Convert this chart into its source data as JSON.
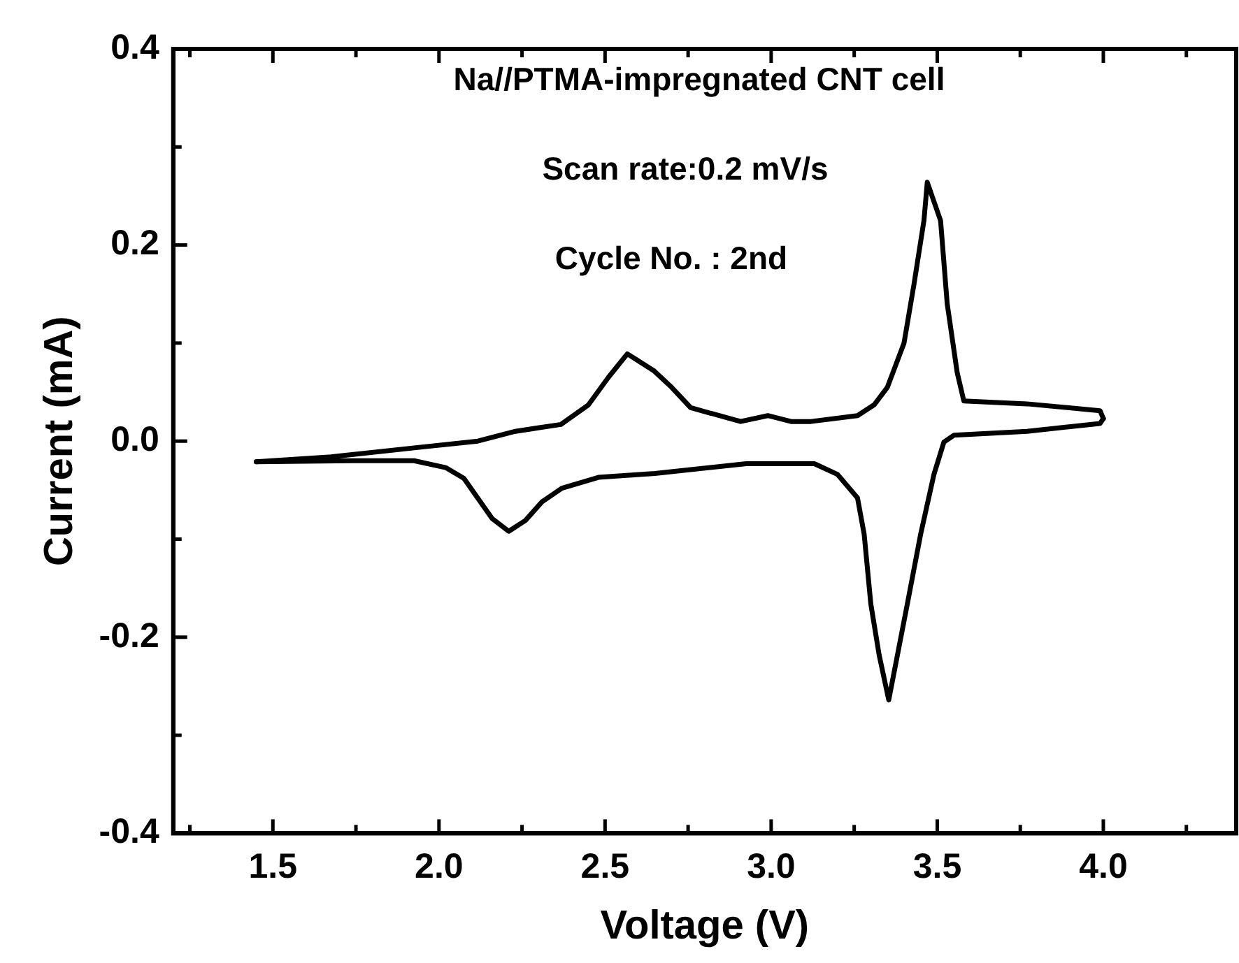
{
  "chart_data": {
    "type": "line",
    "xlabel": "Voltage (V)",
    "ylabel": "Current (mA)",
    "annotations": [
      "Na//PTMA-impregnated CNT cell",
      "Scan rate:0.2 mV/s",
      "Cycle No. : 2nd"
    ],
    "xlim": [
      1.2,
      4.4
    ],
    "ylim": [
      -0.4,
      0.4
    ],
    "xticks": [
      {
        "value": 1.25,
        "label": null
      },
      1.5,
      {
        "value": 1.75,
        "label": null
      },
      {
        "value": 2,
        "label": "2.0"
      },
      {
        "value": 2.25,
        "label": null
      },
      2.5,
      {
        "value": 2.75,
        "label": null
      },
      {
        "value": 3,
        "label": "3.0"
      },
      {
        "value": 3.25,
        "label": null
      },
      3.5,
      {
        "value": 3.75,
        "label": null
      },
      {
        "value": 4,
        "label": "4.0"
      },
      {
        "value": 4.25,
        "label": null
      }
    ],
    "yticks": [
      -0.4,
      {
        "value": -0.3,
        "label": null
      },
      -0.2,
      {
        "value": -0.1,
        "label": null
      },
      {
        "value": 0,
        "label": "0.0"
      },
      {
        "value": 0.1,
        "label": null
      },
      0.2,
      {
        "value": 0.3,
        "label": null
      },
      0.4
    ],
    "marker": "none",
    "line_style": "solid",
    "series": [
      {
        "color": "#000000",
        "x": [
          1.45,
          1.675,
          1.95,
          2.117,
          2.23,
          2.367,
          2.45,
          2.51,
          2.567,
          2.646,
          2.7,
          2.758,
          2.908,
          2.99,
          3.06,
          3.12,
          3.26,
          3.31,
          3.35,
          3.4,
          3.43,
          3.46,
          3.47,
          3.51,
          3.53,
          3.56,
          3.58,
          3.77,
          3.99,
          4.0
        ],
        "values": [
          -0.021,
          -0.016,
          -0.006,
          0.0,
          0.01,
          0.017,
          0.037,
          0.065,
          0.089,
          0.072,
          0.055,
          0.034,
          0.02,
          0.026,
          0.02,
          0.02,
          0.026,
          0.037,
          0.055,
          0.1,
          0.16,
          0.225,
          0.264,
          0.225,
          0.14,
          0.07,
          0.041,
          0.038,
          0.031,
          0.023
        ]
      },
      {
        "color": "#000000",
        "x": [
          1.45,
          1.74,
          1.925,
          2.02,
          2.075,
          2.16,
          2.21,
          2.26,
          2.31,
          2.37,
          2.48,
          2.65,
          2.925,
          3.06,
          3.13,
          3.2,
          3.26,
          3.28,
          3.3,
          3.325,
          3.354,
          3.41,
          3.45,
          3.49,
          3.52,
          3.55,
          3.77,
          3.99,
          4.0
        ],
        "values": [
          -0.021,
          -0.02,
          -0.02,
          -0.027,
          -0.038,
          -0.079,
          -0.092,
          -0.081,
          -0.062,
          -0.048,
          -0.037,
          -0.033,
          -0.023,
          -0.023,
          -0.023,
          -0.034,
          -0.058,
          -0.095,
          -0.166,
          -0.218,
          -0.264,
          -0.166,
          -0.095,
          -0.034,
          -0.001,
          0.006,
          0.01,
          0.018,
          0.023
        ]
      }
    ]
  }
}
